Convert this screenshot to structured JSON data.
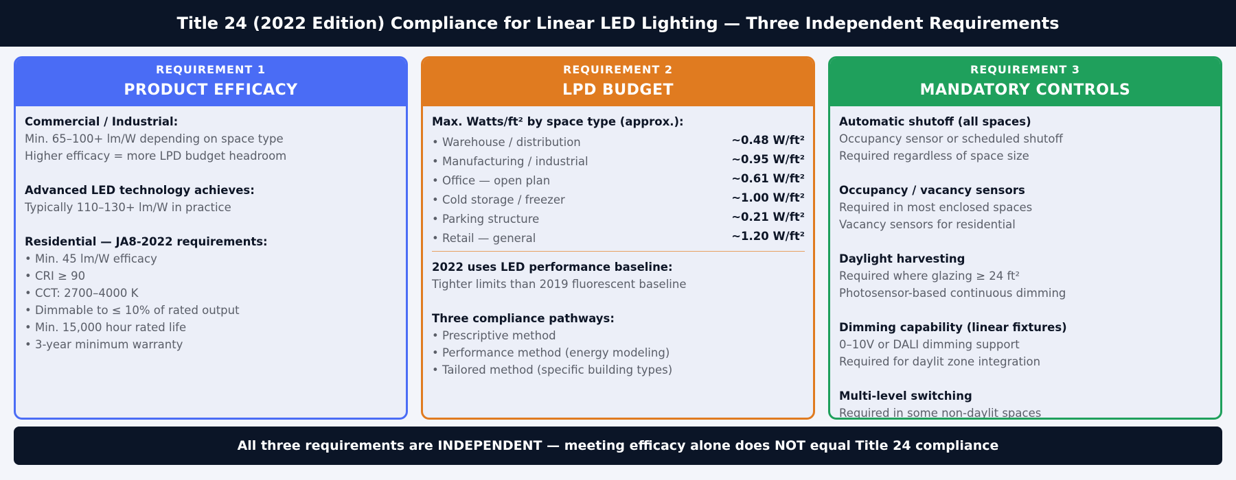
{
  "header": {
    "title": "Title 24 (2022 Edition) Compliance for Linear LED Lighting — Three Independent Requirements"
  },
  "colors": {
    "req1": "#4a6cf5",
    "req2": "#e07b20",
    "req3": "#1fa05c",
    "dark": "#0b1527"
  },
  "req1": {
    "number": "REQUIREMENT 1",
    "title": "PRODUCT EFFICACY",
    "s1_title": "Commercial / Industrial:",
    "s1_lines": [
      "Min. 65–100+ lm/W depending on space type",
      "Higher efficacy = more LPD budget headroom"
    ],
    "s2_title": "Advanced LED technology achieves:",
    "s2_lines": [
      "Typically 110–130+ lm/W in practice"
    ],
    "s3_title": "Residential — JA8-2022 requirements:",
    "s3_lines": [
      "• Min. 45 lm/W efficacy",
      "• CRI ≥ 90",
      "• CCT: 2700–4000 K",
      "• Dimmable to ≤ 10% of rated output",
      "• Min. 15,000 hour rated life",
      "• 3-year minimum warranty"
    ]
  },
  "req2": {
    "number": "REQUIREMENT 2",
    "title": "LPD BUDGET",
    "table_title": "Max. Watts/ft² by space type (approx.):",
    "rows": [
      {
        "label": "• Warehouse / distribution",
        "value": "~0.48 W/ft²"
      },
      {
        "label": "• Manufacturing / industrial",
        "value": "~0.95 W/ft²"
      },
      {
        "label": "• Office — open plan",
        "value": "~0.61 W/ft²"
      },
      {
        "label": "• Cold storage / freezer",
        "value": "~1.00 W/ft²"
      },
      {
        "label": "• Parking structure",
        "value": "~0.21 W/ft²"
      },
      {
        "label": "• Retail — general",
        "value": "~1.20 W/ft²"
      }
    ],
    "s2_title": "2022 uses LED performance baseline:",
    "s2_lines": [
      "Tighter limits than 2019 fluorescent baseline"
    ],
    "s3_title": "Three compliance pathways:",
    "s3_lines": [
      "• Prescriptive method",
      "• Performance method (energy modeling)",
      "• Tailored method (specific building types)"
    ]
  },
  "req3": {
    "number": "REQUIREMENT 3",
    "title": "MANDATORY CONTROLS",
    "sections": [
      {
        "title": "Automatic shutoff (all spaces)",
        "lines": [
          "Occupancy sensor or scheduled shutoff",
          "Required regardless of space size"
        ]
      },
      {
        "title": "Occupancy / vacancy sensors",
        "lines": [
          "Required in most enclosed spaces",
          "Vacancy sensors for residential"
        ]
      },
      {
        "title": "Daylight harvesting",
        "lines": [
          "Required where glazing ≥ 24 ft²",
          "Photosensor-based continuous dimming"
        ]
      },
      {
        "title": "Dimming capability (linear fixtures)",
        "lines": [
          "0–10V or DALI dimming support",
          "Required for daylit zone integration"
        ]
      },
      {
        "title": "Multi-level switching",
        "lines": [
          "Required in some non-daylit spaces"
        ]
      }
    ]
  },
  "footer": {
    "text": "All three requirements are INDEPENDENT — meeting efficacy alone does NOT equal Title 24 compliance"
  }
}
